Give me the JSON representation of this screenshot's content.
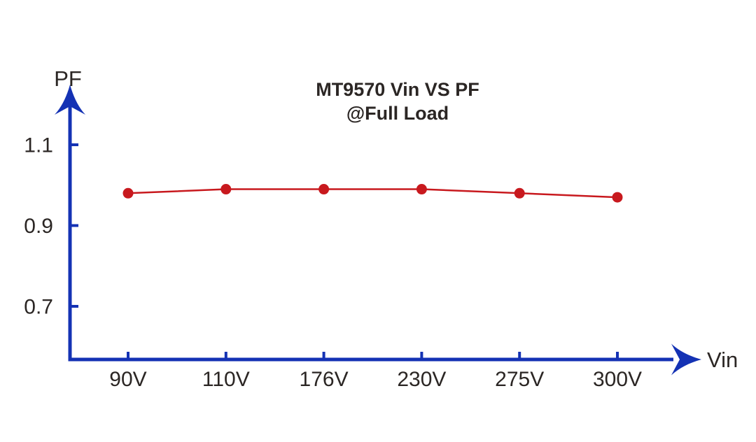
{
  "chart_data": {
    "type": "line",
    "title": "MT9570 Vin VS PF",
    "subtitle": "@Full Load",
    "xlabel": "Vin",
    "ylabel": "PF",
    "categories": [
      "90V",
      "110V",
      "176V",
      "230V",
      "275V",
      "300V"
    ],
    "series": [
      {
        "name": "PF vs Vin @Full Load",
        "values": [
          0.98,
          0.99,
          0.99,
          0.99,
          0.98,
          0.97
        ]
      }
    ],
    "yticks": [
      "1.1",
      "0.9",
      "0.7"
    ],
    "ylim": [
      0.57,
      1.2
    ],
    "grid": false,
    "legend_position": "none",
    "colors": {
      "axis": "#1432b4",
      "series": "#c8191e",
      "text": "#2b2624",
      "background": "#ffffff"
    }
  }
}
